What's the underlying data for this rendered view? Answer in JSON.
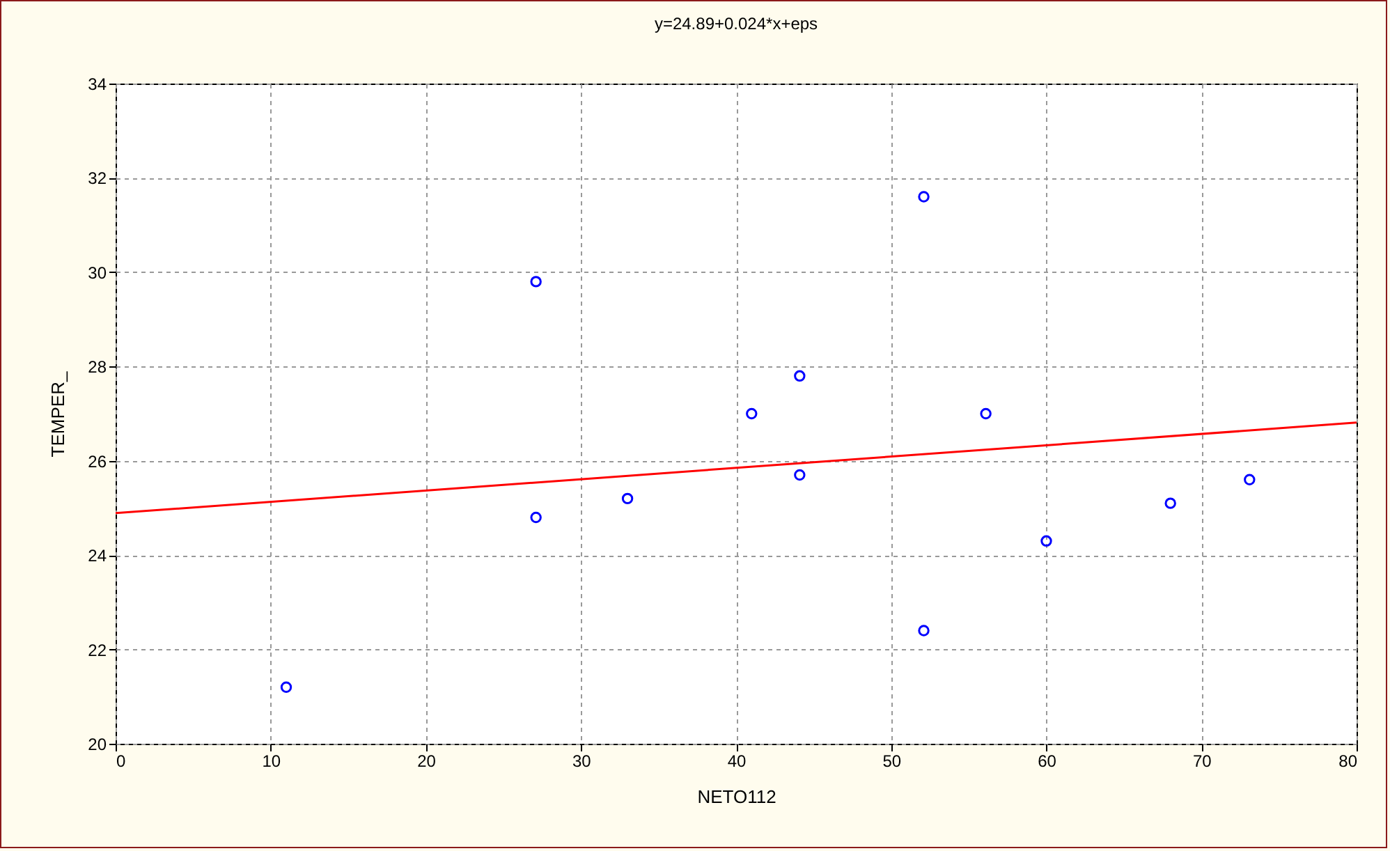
{
  "chart_data": {
    "type": "scatter",
    "title": "y=24.89+0.024*x+eps",
    "xlabel": "NETO112",
    "ylabel": "TEMPER_",
    "xlim": [
      0,
      80
    ],
    "xticks": [
      0,
      10,
      20,
      30,
      40,
      50,
      60,
      70,
      80
    ],
    "ylim": [
      20,
      34
    ],
    "yticks": [
      20,
      22,
      24,
      26,
      28,
      30,
      32,
      34
    ],
    "grid": true,
    "series": [
      {
        "color": "#0000ff",
        "marker": "circle",
        "x": [
          11,
          27.1,
          27.1,
          33,
          41,
          44.1,
          44.1,
          52.1,
          52.1,
          56.1,
          60,
          68,
          73.1
        ],
        "values": [
          21.2,
          29.8,
          24.8,
          25.2,
          27,
          27.8,
          25.7,
          31.6,
          22.4,
          27,
          24.3,
          25.1,
          25.6
        ]
      },
      {
        "type": "line",
        "color": "#ff0000",
        "line_style": "solid",
        "x": [
          0,
          80
        ],
        "values": [
          24.89,
          26.81
        ]
      }
    ]
  }
}
